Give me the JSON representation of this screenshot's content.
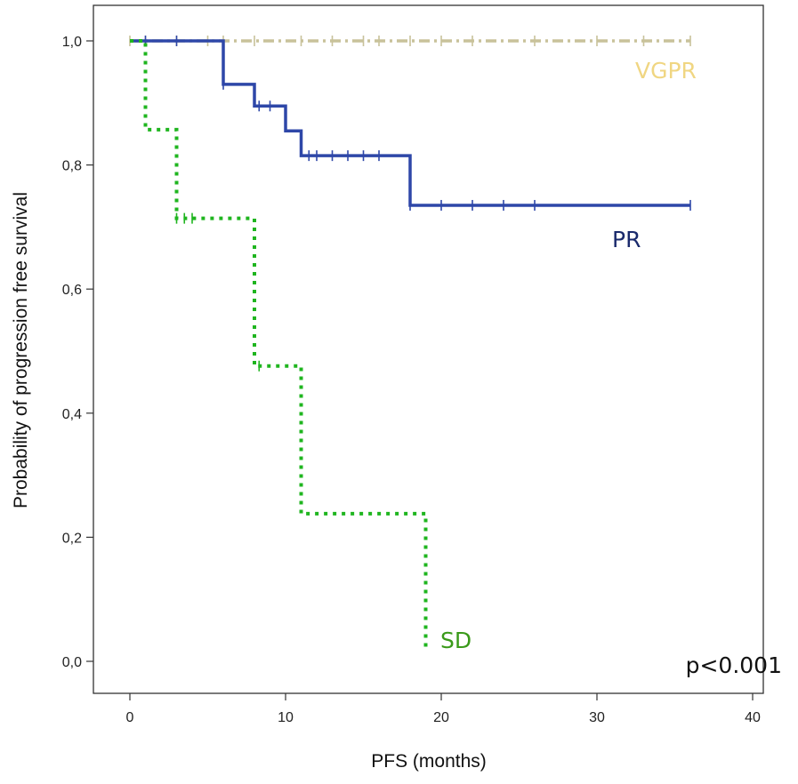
{
  "chart_data": {
    "type": "line",
    "subtype": "kaplan-meier step curves",
    "xlabel": "PFS (months)",
    "ylabel": "Probability of progression free survival",
    "xlim": [
      -3,
      42.5
    ],
    "ylim": [
      -0.04,
      1.06
    ],
    "x_ticks": [
      0,
      10,
      20,
      30,
      40
    ],
    "x_tick_labels": [
      "0",
      "10",
      "20",
      "30",
      "40"
    ],
    "y_ticks": [
      0.0,
      0.2,
      0.4,
      0.6,
      0.8,
      1.0
    ],
    "y_tick_labels": [
      "0,0",
      "0,2",
      "0,4",
      "0,6",
      "0,8",
      "1,0"
    ],
    "grid": false,
    "annotation": "p<0.001",
    "series": [
      {
        "name": "VGPR",
        "color": "#c8c29a",
        "style": "dash-dot",
        "steps": [
          [
            0,
            1.0
          ],
          [
            36,
            1.0
          ]
        ],
        "censored": [
          0,
          1,
          3,
          5,
          6,
          8,
          11,
          13,
          15,
          16,
          18,
          20,
          22,
          26,
          30,
          33,
          36
        ]
      },
      {
        "name": "PR",
        "color": "#2e47a8",
        "style": "solid",
        "steps": [
          [
            0,
            1.0
          ],
          [
            6,
            0.93
          ],
          [
            8,
            0.895
          ],
          [
            10,
            0.855
          ],
          [
            11,
            0.815
          ],
          [
            18,
            0.735
          ],
          [
            36,
            0.735
          ]
        ],
        "censored": [
          1,
          3,
          6,
          8.3,
          9,
          11.5,
          12,
          13,
          14,
          15,
          16,
          18,
          20,
          22,
          24,
          26,
          36
        ]
      },
      {
        "name": "SD",
        "color": "#1fb51f",
        "style": "dotted",
        "steps": [
          [
            0,
            1.0
          ],
          [
            1,
            0.857
          ],
          [
            3,
            0.714
          ],
          [
            8,
            0.476
          ],
          [
            11,
            0.238
          ],
          [
            19,
            0.02
          ]
        ],
        "censored": [
          3,
          3.5,
          4,
          8.3
        ]
      }
    ],
    "labels": [
      {
        "series": "VGPR",
        "text": "VGPR",
        "color": "#f0d682"
      },
      {
        "series": "PR",
        "text": "PR",
        "color": "#1a2a6c"
      },
      {
        "series": "SD",
        "text": "SD",
        "color": "#3a9a1a"
      }
    ]
  }
}
